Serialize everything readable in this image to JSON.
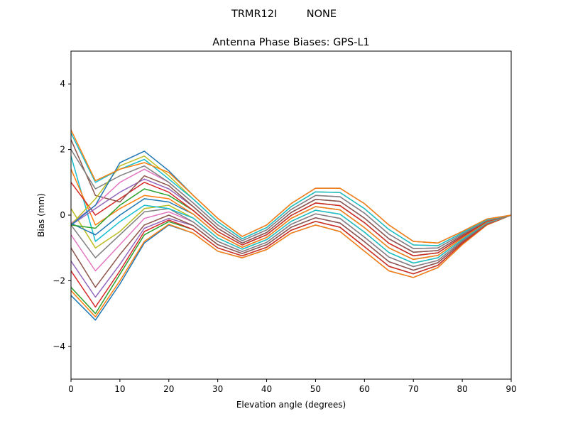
{
  "chart_data": {
    "type": "line",
    "suptitle": "TRMR12I         NONE",
    "title": "Antenna Phase Biases: GPS-L1",
    "xlabel": "Elevation angle (degrees)",
    "ylabel": "Bias (mm)",
    "xlim": [
      0,
      90
    ],
    "ylim": [
      -5,
      5
    ],
    "xticks": [
      0,
      10,
      20,
      30,
      40,
      50,
      60,
      70,
      80,
      90
    ],
    "yticks": [
      -4,
      -2,
      0,
      2,
      4
    ],
    "ytick_labels": [
      "−4",
      "−2",
      "0",
      "2",
      "4"
    ],
    "grid": false,
    "x": [
      0,
      5,
      10,
      15,
      20,
      25,
      30,
      35,
      40,
      45,
      50,
      55,
      60,
      65,
      70,
      75,
      80,
      85,
      90
    ],
    "colors": [
      "#1f77b4",
      "#ff7f0e",
      "#2ca02c",
      "#d62728",
      "#9467bd",
      "#8c564b",
      "#e377c2",
      "#7f7f7f",
      "#bcbd22",
      "#17becf"
    ],
    "series": [
      {
        "values": [
          -2.45,
          -3.2,
          -2.1,
          -0.85,
          -0.3,
          -0.55,
          -1.1,
          -1.3,
          -1.05,
          -0.55,
          -0.3,
          -0.5,
          -1.1,
          -1.7,
          -1.9,
          -1.6,
          -0.9,
          -0.3,
          0
        ]
      },
      {
        "values": [
          -2.3,
          -3.1,
          -2.0,
          -0.8,
          -0.28,
          -0.55,
          -1.1,
          -1.3,
          -1.05,
          -0.55,
          -0.3,
          -0.5,
          -1.1,
          -1.7,
          -1.9,
          -1.6,
          -0.9,
          -0.3,
          0
        ]
      },
      {
        "values": [
          -2.2,
          -3.0,
          -1.8,
          -0.6,
          -0.2,
          -0.44,
          -1.0,
          -1.24,
          -0.98,
          -0.46,
          -0.19,
          -0.37,
          -0.96,
          -1.56,
          -1.79,
          -1.53,
          -0.86,
          -0.28,
          0
        ]
      },
      {
        "values": [
          -1.7,
          -2.8,
          -1.7,
          -0.5,
          -0.15,
          -0.44,
          -1.0,
          -1.24,
          -0.98,
          -0.46,
          -0.19,
          -0.37,
          -0.96,
          -1.56,
          -1.79,
          -1.53,
          -0.86,
          -0.28,
          0
        ]
      },
      {
        "values": [
          -1.4,
          -2.5,
          -1.5,
          -0.4,
          -0.1,
          -0.32,
          -0.9,
          -1.17,
          -0.9,
          -0.37,
          -0.08,
          -0.24,
          -0.81,
          -1.42,
          -1.68,
          -1.45,
          -0.82,
          -0.26,
          0
        ]
      },
      {
        "values": [
          -1.0,
          -2.2,
          -1.2,
          -0.3,
          0.0,
          -0.32,
          -0.9,
          -1.17,
          -0.9,
          -0.37,
          -0.08,
          -0.24,
          -0.81,
          -1.42,
          -1.68,
          -1.45,
          -0.82,
          -0.26,
          0
        ]
      },
      {
        "values": [
          -0.6,
          -1.7,
          -0.9,
          -0.1,
          0.1,
          -0.21,
          -0.8,
          -1.11,
          -0.83,
          -0.28,
          0.04,
          -0.1,
          -0.67,
          -1.28,
          -1.57,
          -1.38,
          -0.78,
          -0.25,
          0
        ]
      },
      {
        "values": [
          -0.3,
          -1.3,
          -0.6,
          0.1,
          0.2,
          -0.21,
          -0.8,
          -1.11,
          -0.83,
          -0.28,
          0.04,
          -0.1,
          -0.67,
          -1.28,
          -1.57,
          -1.38,
          -0.78,
          -0.25,
          0
        ]
      },
      {
        "values": [
          0.2,
          -1.0,
          -0.5,
          0.2,
          0.3,
          -0.09,
          -0.7,
          -1.04,
          -0.75,
          -0.19,
          0.15,
          0.03,
          -0.52,
          -1.14,
          -1.46,
          -1.3,
          -0.74,
          -0.23,
          0
        ]
      },
      {
        "values": [
          1.8,
          -0.8,
          -0.2,
          0.3,
          0.2,
          -0.09,
          -0.7,
          -1.04,
          -0.75,
          -0.19,
          0.15,
          0.03,
          -0.52,
          -1.14,
          -1.46,
          -1.3,
          -0.74,
          -0.23,
          0
        ]
      },
      {
        "values": [
          -0.25,
          -0.6,
          0.0,
          0.5,
          0.4,
          0.03,
          -0.6,
          -0.98,
          -0.68,
          -0.1,
          0.26,
          0.16,
          -0.38,
          -1.0,
          -1.35,
          -1.23,
          -0.7,
          -0.21,
          0
        ]
      },
      {
        "values": [
          1.4,
          -0.3,
          0.2,
          0.6,
          0.5,
          0.03,
          -0.6,
          -0.98,
          -0.68,
          -0.1,
          0.26,
          0.16,
          -0.38,
          -1.0,
          -1.35,
          -1.23,
          -0.7,
          -0.21,
          0
        ]
      },
      {
        "values": [
          -0.3,
          -0.4,
          0.3,
          0.8,
          0.6,
          0.14,
          -0.5,
          -0.91,
          -0.6,
          -0.01,
          0.37,
          0.29,
          -0.23,
          -0.86,
          -1.24,
          -1.15,
          -0.66,
          -0.19,
          0
        ]
      },
      {
        "values": [
          1.0,
          0.0,
          0.5,
          1.0,
          0.7,
          0.14,
          -0.5,
          -0.91,
          -0.6,
          -0.01,
          0.37,
          0.29,
          -0.23,
          -0.86,
          -1.24,
          -1.15,
          -0.66,
          -0.19,
          0
        ]
      },
      {
        "values": [
          -0.3,
          0.2,
          0.7,
          1.1,
          0.8,
          0.26,
          -0.4,
          -0.85,
          -0.53,
          0.08,
          0.48,
          0.42,
          -0.09,
          -0.72,
          -1.13,
          -1.08,
          -0.62,
          -0.17,
          0
        ]
      },
      {
        "values": [
          2.3,
          0.6,
          0.4,
          1.2,
          0.9,
          0.26,
          -0.4,
          -0.85,
          -0.53,
          0.08,
          0.48,
          0.42,
          -0.09,
          -0.72,
          -1.13,
          -1.08,
          -0.62,
          -0.17,
          0
        ]
      },
      {
        "values": [
          -0.25,
          0.3,
          1.0,
          1.4,
          1.0,
          0.37,
          -0.3,
          -0.78,
          -0.45,
          0.17,
          0.6,
          0.56,
          0.06,
          -0.58,
          -1.02,
          -1.0,
          -0.58,
          -0.16,
          0
        ]
      },
      {
        "values": [
          2.0,
          0.8,
          1.2,
          1.5,
          1.0,
          0.37,
          -0.3,
          -0.78,
          -0.45,
          0.17,
          0.6,
          0.56,
          0.06,
          -0.58,
          -1.02,
          -1.0,
          -0.58,
          -0.16,
          0
        ]
      },
      {
        "values": [
          -0.3,
          0.5,
          1.5,
          1.8,
          1.2,
          0.49,
          -0.2,
          -0.72,
          -0.38,
          0.26,
          0.71,
          0.69,
          0.2,
          -0.44,
          -0.91,
          -0.93,
          -0.54,
          -0.14,
          0
        ]
      },
      {
        "values": [
          2.5,
          1.0,
          1.4,
          1.7,
          1.1,
          0.49,
          -0.2,
          -0.72,
          -0.38,
          0.26,
          0.71,
          0.69,
          0.2,
          -0.44,
          -0.91,
          -0.93,
          -0.54,
          -0.14,
          0
        ]
      },
      {
        "values": [
          -0.3,
          0.3,
          1.6,
          1.95,
          1.35,
          0.6,
          -0.1,
          -0.65,
          -0.3,
          0.35,
          0.82,
          0.82,
          0.35,
          -0.3,
          -0.8,
          -0.85,
          -0.5,
          -0.12,
          0
        ]
      },
      {
        "values": [
          2.6,
          1.05,
          1.4,
          1.6,
          1.3,
          0.6,
          -0.1,
          -0.65,
          -0.3,
          0.35,
          0.82,
          0.82,
          0.35,
          -0.3,
          -0.8,
          -0.85,
          -0.5,
          -0.12,
          0
        ]
      }
    ]
  }
}
